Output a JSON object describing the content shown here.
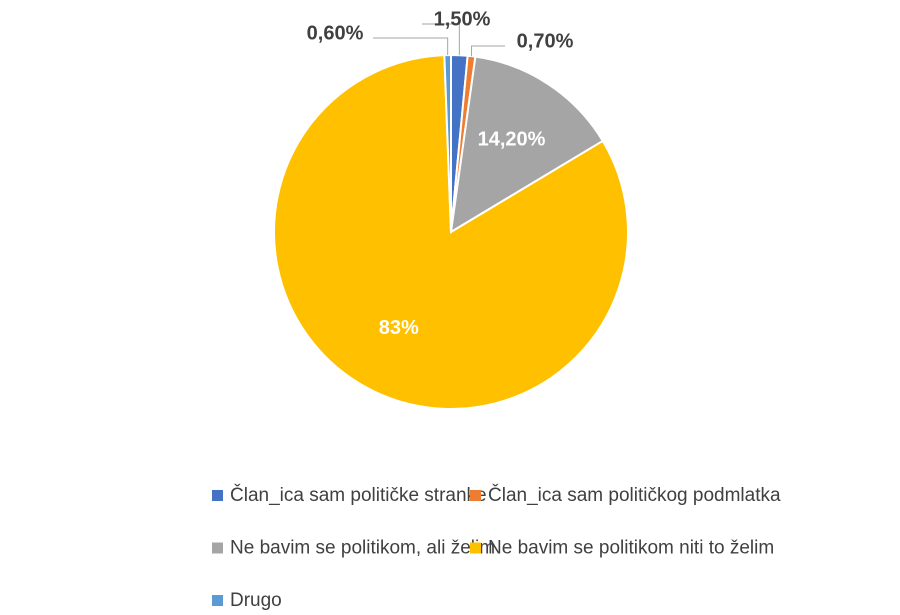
{
  "chart_data": {
    "type": "pie",
    "categories": [
      "Član_ica sam političke stranke",
      "Član_ica sam političkog podmlatka",
      "Ne bavim se politikom, ali želim",
      "Ne bavim se politikom niti to želim",
      "Drugo"
    ],
    "values": [
      1.5,
      0.7,
      14.2,
      83,
      0.6
    ],
    "value_labels": [
      "1,50%",
      "0,70%",
      "14,20%",
      "83%",
      "0,60%"
    ],
    "colors": [
      "#4472c4",
      "#ed7d31",
      "#a5a5a5",
      "#ffc000",
      "#5b9bd5"
    ],
    "legend": "bottom"
  }
}
